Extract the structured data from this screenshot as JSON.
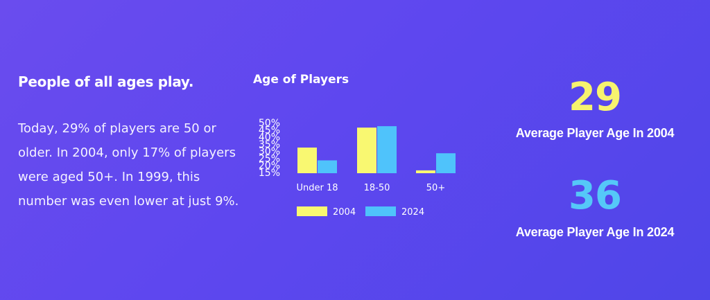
{
  "intro": {
    "title": "People of all ages play.",
    "body": "Today, 29% of players are 50 or older. In 2004, only 17% of players were aged 50+. In 1999, this number was even lower at just 9%."
  },
  "chart_data": {
    "type": "bar",
    "title": "Age of Players",
    "categories": [
      "Under 18",
      "18-50",
      "50+"
    ],
    "yticks": [
      "15%",
      "20%",
      "25%",
      "30%",
      "35%",
      "40%",
      "45%",
      "50%"
    ],
    "ylim": [
      15,
      50
    ],
    "series": [
      {
        "name": "2004",
        "color": "#f9f871",
        "values": [
          33,
          47,
          17
        ]
      },
      {
        "name": "2024",
        "color": "#4fc3fb",
        "values": [
          24,
          48,
          29
        ]
      }
    ],
    "legend": "bottom"
  },
  "stats": [
    {
      "value": "29",
      "label": "Average Player Age In 2004",
      "color": "#f7f36e"
    },
    {
      "value": "36",
      "label": "Average Player Age In 2024",
      "color": "#55c8f8"
    }
  ]
}
